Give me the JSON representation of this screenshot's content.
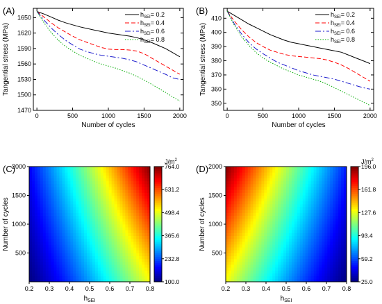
{
  "chart_data": [
    {
      "panel_label": "(A)",
      "type": "line",
      "xlabel": "Number of cycles",
      "ylabel": "Tangential stress (MPa)",
      "xlim": [
        -50,
        2050
      ],
      "ylim": [
        1470,
        1668
      ],
      "xticks": [
        "0",
        "500",
        "1000",
        "1500",
        "2000"
      ],
      "yticks": [
        "1470",
        "1500",
        "1530",
        "1560",
        "1590",
        "1620",
        "1650"
      ],
      "legend_position": "top-right",
      "series": [
        {
          "name": "= 0.2",
          "color": "#000000",
          "dash": "",
          "x": [
            0,
            100,
            200,
            300,
            400,
            500,
            600,
            700,
            800,
            900,
            1000,
            1100,
            1200,
            1300,
            1400,
            1500,
            1600,
            1700,
            1800,
            1900,
            2000
          ],
          "y": [
            1662,
            1657,
            1651,
            1645,
            1640,
            1636,
            1632,
            1629,
            1626,
            1623,
            1620,
            1618,
            1616,
            1614,
            1611,
            1607,
            1602,
            1596,
            1590,
            1582,
            1574
          ]
        },
        {
          "name": "= 0.4",
          "color": "#ff0000",
          "dash": "6,3",
          "x": [
            0,
            100,
            200,
            300,
            400,
            500,
            600,
            700,
            800,
            900,
            1000,
            1100,
            1200,
            1300,
            1400,
            1500,
            1600,
            1700,
            1800,
            1900,
            2000
          ],
          "y": [
            1662,
            1651,
            1640,
            1630,
            1622,
            1614,
            1607,
            1602,
            1597,
            1592,
            1589,
            1588,
            1588,
            1587,
            1585,
            1580,
            1572,
            1564,
            1556,
            1548,
            1540
          ]
        },
        {
          "name": "= 0.6",
          "color": "#1a1acc",
          "dash": "8,3,2,3",
          "x": [
            0,
            100,
            200,
            300,
            400,
            500,
            600,
            700,
            800,
            900,
            1000,
            1100,
            1200,
            1300,
            1400,
            1500,
            1600,
            1700,
            1800,
            1900,
            2000
          ],
          "y": [
            1662,
            1645,
            1630,
            1617,
            1606,
            1597,
            1589,
            1584,
            1580,
            1577,
            1575,
            1573,
            1571,
            1568,
            1564,
            1558,
            1552,
            1546,
            1540,
            1533,
            1530
          ]
        },
        {
          "name": "= 0.8",
          "color": "#00aa00",
          "dash": "1.5,2",
          "x": [
            0,
            100,
            200,
            300,
            400,
            500,
            600,
            700,
            800,
            900,
            1000,
            1100,
            1200,
            1300,
            1400,
            1500,
            1600,
            1700,
            1800,
            1900,
            2000
          ],
          "y": [
            1662,
            1640,
            1621,
            1606,
            1594,
            1585,
            1577,
            1571,
            1565,
            1560,
            1556,
            1552,
            1547,
            1542,
            1536,
            1529,
            1521,
            1513,
            1505,
            1496,
            1488
          ]
        }
      ]
    },
    {
      "panel_label": "(B)",
      "type": "line",
      "xlabel": "Number of cycles",
      "ylabel": "Tangential stress (MPa)",
      "xlim": [
        -50,
        2050
      ],
      "ylim": [
        345,
        417
      ],
      "xticks": [
        "0",
        "500",
        "1000",
        "1500",
        "2000"
      ],
      "yticks": [
        "350",
        "360",
        "370",
        "380",
        "390",
        "400",
        "410"
      ],
      "legend_position": "top-right",
      "series": [
        {
          "name": "= 0.2",
          "color": "#000000",
          "dash": "",
          "x": [
            0,
            100,
            200,
            300,
            400,
            500,
            600,
            700,
            800,
            900,
            1000,
            1100,
            1200,
            1300,
            1400,
            1500,
            1600,
            1700,
            1800,
            1900,
            2000
          ],
          "y": [
            415,
            412,
            409,
            406,
            403.5,
            401,
            398.5,
            396.5,
            394.5,
            393,
            392,
            391,
            390,
            389,
            388,
            387,
            386,
            384,
            382,
            380,
            378
          ]
        },
        {
          "name": "= 0.4",
          "color": "#ff0000",
          "dash": "6,3",
          "x": [
            0,
            100,
            200,
            300,
            400,
            500,
            600,
            700,
            800,
            900,
            1000,
            1100,
            1200,
            1300,
            1400,
            1500,
            1600,
            1700,
            1800,
            1900,
            2000
          ],
          "y": [
            415,
            408,
            402,
            397,
            393,
            390,
            387.5,
            386,
            384.5,
            383.5,
            383,
            382.5,
            382,
            381.5,
            380.5,
            379,
            377,
            374.5,
            371.5,
            368.5,
            365.5
          ]
        },
        {
          "name": "= 0.6",
          "color": "#1a1acc",
          "dash": "8,3,2,3",
          "x": [
            0,
            100,
            200,
            300,
            400,
            500,
            600,
            700,
            800,
            900,
            1000,
            1100,
            1200,
            1300,
            1400,
            1500,
            1600,
            1700,
            1800,
            1900,
            2000
          ],
          "y": [
            415,
            406,
            399,
            393,
            388.5,
            385,
            382,
            379,
            377,
            375,
            373,
            371.5,
            370,
            369,
            368,
            367,
            365.5,
            364,
            362.5,
            361,
            360
          ]
        },
        {
          "name": "= 0.8",
          "color": "#00aa00",
          "dash": "1.5,2",
          "x": [
            0,
            100,
            200,
            300,
            400,
            500,
            600,
            700,
            800,
            900,
            1000,
            1100,
            1200,
            1300,
            1400,
            1500,
            1600,
            1700,
            1800,
            1900,
            2000
          ],
          "y": [
            415,
            405,
            397,
            391,
            386,
            382,
            379,
            376.5,
            374,
            372,
            370,
            368.5,
            367,
            365.5,
            363.5,
            361,
            358.5,
            356,
            353.5,
            351,
            348.5
          ]
        }
      ]
    },
    {
      "panel_label": "(C)",
      "type": "heatmap",
      "xlabel": "h",
      "xlabel_sub": "SEI",
      "ylabel": "Number of cycles",
      "xlim": [
        0.2,
        0.8
      ],
      "ylim": [
        0,
        2000
      ],
      "xticks": [
        "0.2",
        "0.3",
        "0.4",
        "0.5",
        "0.6",
        "0.7",
        "0.8"
      ],
      "yticks": [
        "500",
        "1000",
        "1500",
        "2000"
      ],
      "colorbar_unit": "J/m",
      "colorbar_unit_sup": "2",
      "colorbar_ticks": [
        "100.0",
        "232.8",
        "365.6",
        "498.4",
        "631.2",
        "764.0"
      ],
      "value_range": [
        100,
        764
      ],
      "corner_values": {
        "x0.2_y0": 100,
        "x0.8_y0": 510,
        "x0.2_y2000": 225,
        "x0.8_y2000": 764
      }
    },
    {
      "panel_label": "(D)",
      "type": "heatmap",
      "xlabel": "h",
      "xlabel_sub": "SEI",
      "ylabel": "Number of cycles",
      "xlim": [
        0.2,
        0.8
      ],
      "ylim": [
        0,
        2000
      ],
      "xticks": [
        "0.2",
        "0.3",
        "0.4",
        "0.5",
        "0.6",
        "0.7",
        "0.8"
      ],
      "yticks": [
        "500",
        "1000",
        "1500",
        "2000"
      ],
      "colorbar_unit": "J/m",
      "colorbar_unit_sup": "2",
      "colorbar_ticks": [
        "25.0",
        "59.2",
        "93.4",
        "127.6",
        "161.8",
        "196.0"
      ],
      "value_range": [
        25,
        196
      ],
      "corner_values": {
        "x0.2_y0": 130,
        "x0.8_y0": 25,
        "x0.2_y2000": 196,
        "x0.8_y2000": 65
      }
    }
  ],
  "legend_symbol": {
    "base": "h",
    "sub": "SEI"
  }
}
